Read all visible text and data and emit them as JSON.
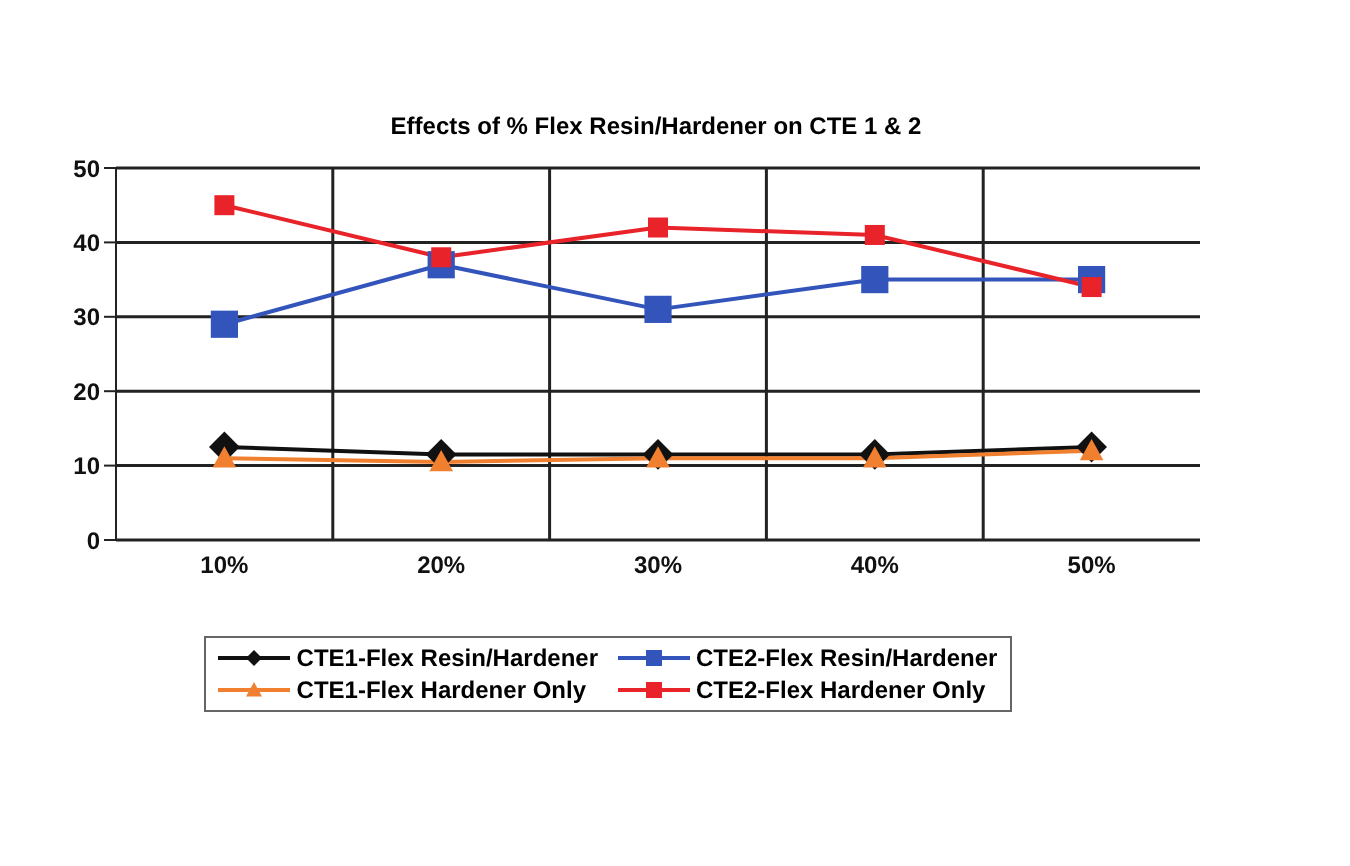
{
  "chart_data": {
    "type": "line",
    "title": "Effects of % Flex Resin/Hardener on CTE 1 & 2",
    "categories": [
      "10%",
      "20%",
      "30%",
      "40%",
      "50%"
    ],
    "series": [
      {
        "name": "CTE1-Flex Resin/Hardener",
        "color": "#111111",
        "marker": "diamond",
        "values": [
          12.5,
          11.5,
          11.5,
          11.5,
          12.5
        ]
      },
      {
        "name": "CTE2-Flex Resin/Hardener",
        "color": "#3355bb",
        "marker": "square",
        "values": [
          29,
          37,
          31,
          35,
          35
        ]
      },
      {
        "name": "CTE1-Flex Hardener Only",
        "color": "#f08030",
        "marker": "triangle",
        "values": [
          11,
          10.5,
          11,
          11,
          12
        ]
      },
      {
        "name": "CTE2-Flex Hardener Only",
        "color": "#e8232a",
        "marker": "square",
        "values": [
          45,
          38,
          42,
          41,
          34
        ]
      }
    ],
    "ylim": [
      0,
      50
    ],
    "yticks": [
      0,
      10,
      20,
      30,
      40,
      50
    ],
    "grid": true,
    "legend": "bottom",
    "line_style": "solid"
  }
}
